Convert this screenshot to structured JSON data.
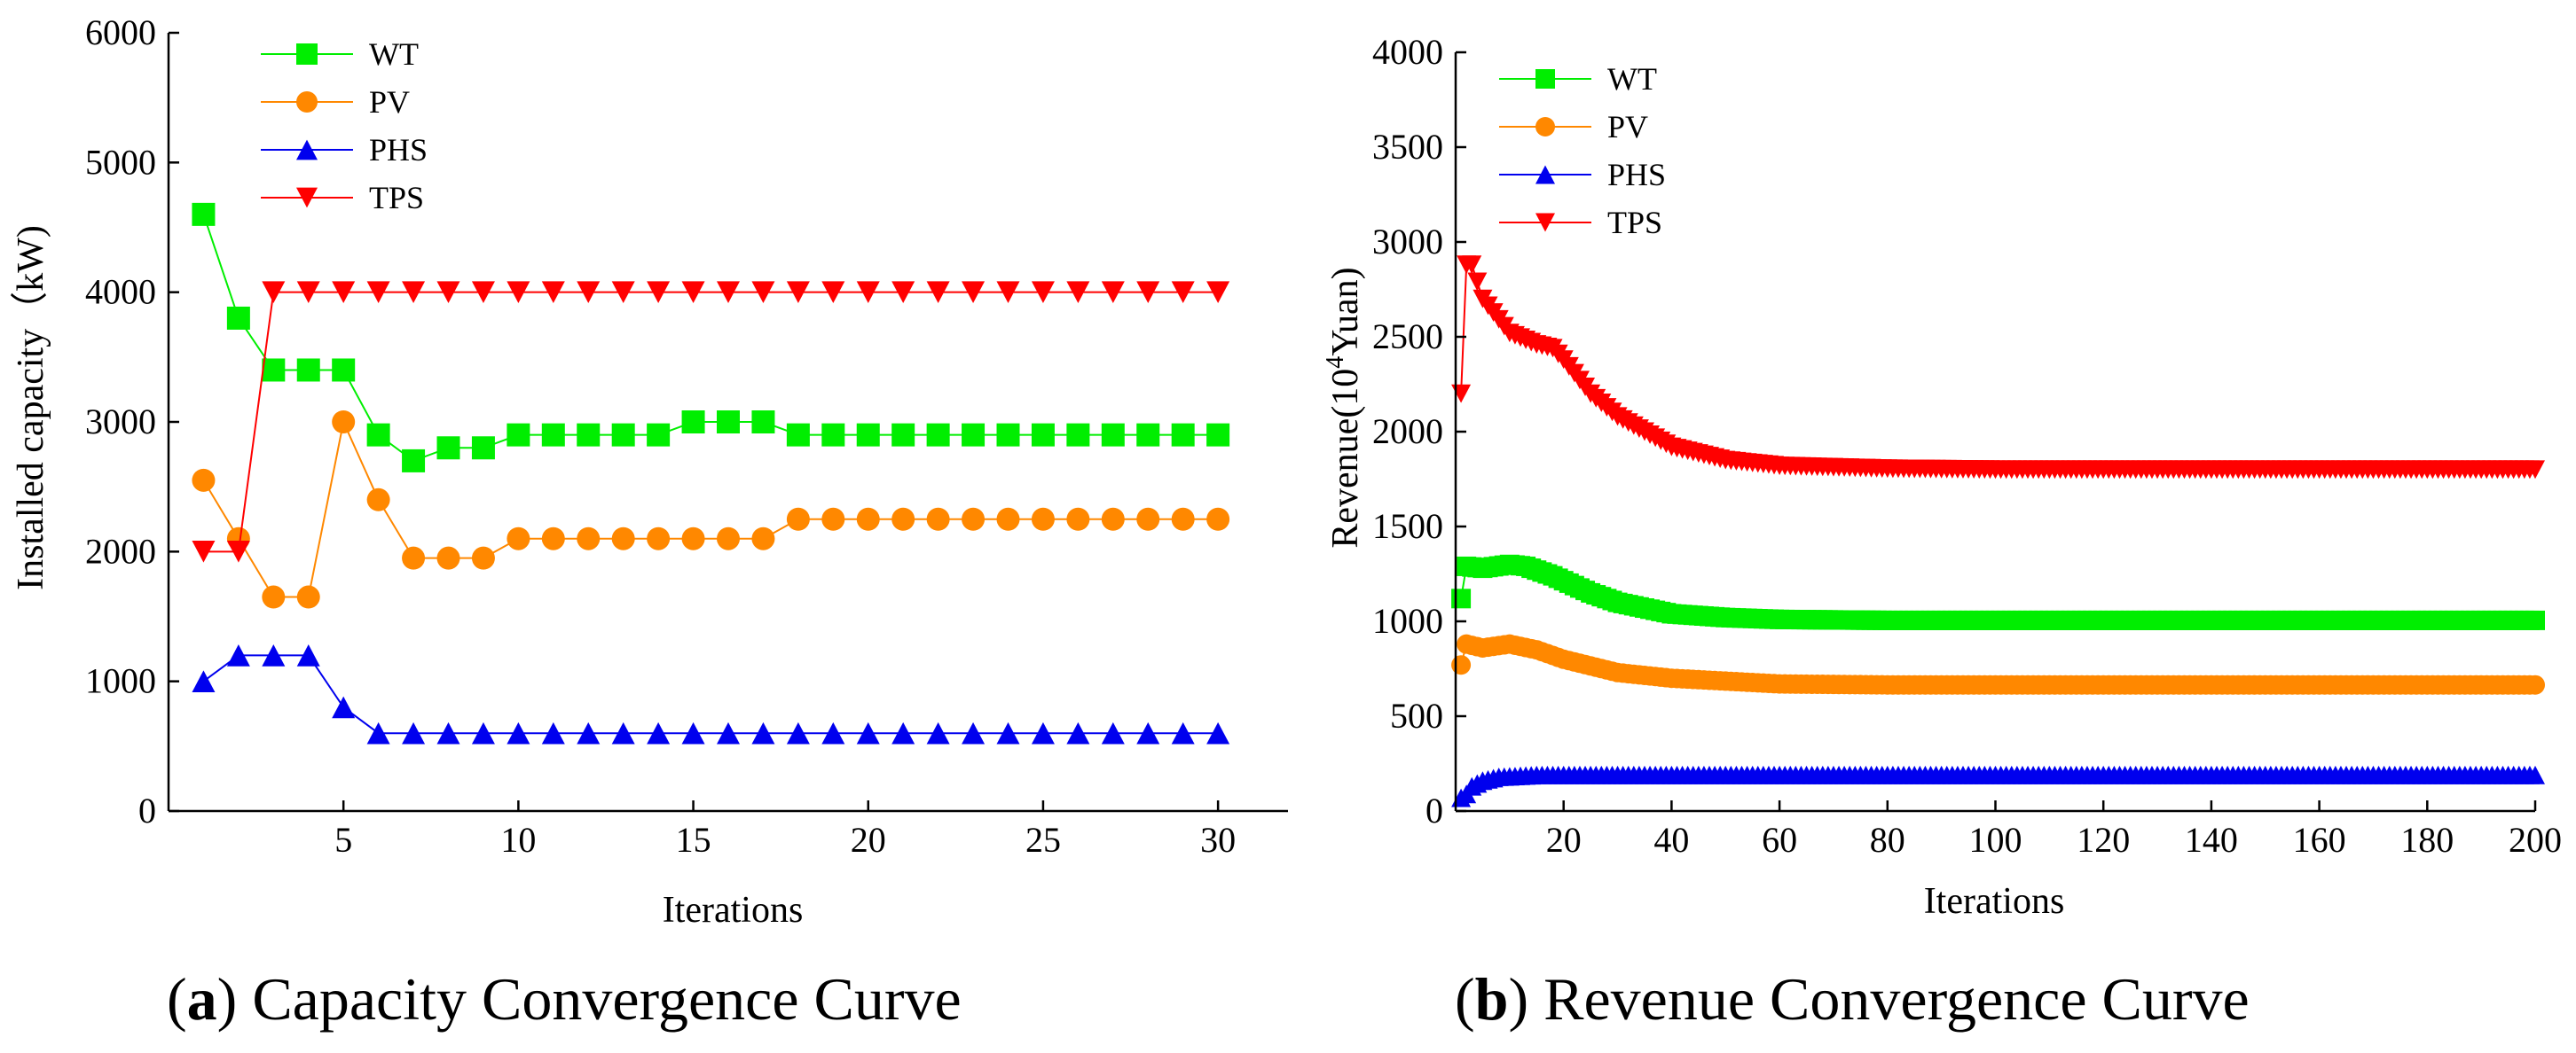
{
  "chart_data": [
    {
      "type": "line",
      "caption_letter": "a",
      "caption_text": "Capacity Convergence Curve",
      "xlabel": "Iterations",
      "ylabel": "Installed capacity（kW)",
      "xlim": [
        0,
        32
      ],
      "ylim": [
        0,
        6000
      ],
      "x_ticks": [
        5,
        10,
        15,
        20,
        25,
        30
      ],
      "y_ticks": [
        0,
        1000,
        2000,
        3000,
        4000,
        5000,
        6000
      ],
      "x": [
        1,
        2,
        3,
        4,
        5,
        6,
        7,
        8,
        9,
        10,
        11,
        12,
        13,
        14,
        15,
        16,
        17,
        18,
        19,
        20,
        21,
        22,
        23,
        24,
        25,
        26,
        27,
        28,
        29,
        30
      ],
      "series": [
        {
          "name": "WT",
          "color": "#00ee00",
          "marker": "square",
          "values": [
            4600,
            3800,
            3400,
            3400,
            3400,
            2900,
            2700,
            2800,
            2800,
            2900,
            2900,
            2900,
            2900,
            2900,
            3000,
            3000,
            3000,
            2900,
            2900,
            2900,
            2900,
            2900,
            2900,
            2900,
            2900,
            2900,
            2900,
            2900,
            2900,
            2900
          ]
        },
        {
          "name": "PV",
          "color": "#ff8800",
          "marker": "circle",
          "values": [
            2550,
            2100,
            1650,
            1650,
            3000,
            2400,
            1950,
            1950,
            1950,
            2100,
            2100,
            2100,
            2100,
            2100,
            2100,
            2100,
            2100,
            2250,
            2250,
            2250,
            2250,
            2250,
            2250,
            2250,
            2250,
            2250,
            2250,
            2250,
            2250,
            2250
          ]
        },
        {
          "name": "PHS",
          "color": "#0000ee",
          "marker": "triangle-up",
          "values": [
            1000,
            1200,
            1200,
            1200,
            800,
            600,
            600,
            600,
            600,
            600,
            600,
            600,
            600,
            600,
            600,
            600,
            600,
            600,
            600,
            600,
            600,
            600,
            600,
            600,
            600,
            600,
            600,
            600,
            600,
            600
          ]
        },
        {
          "name": "TPS",
          "color": "#ff0000",
          "marker": "triangle-down",
          "values": [
            2000,
            2000,
            4000,
            4000,
            4000,
            4000,
            4000,
            4000,
            4000,
            4000,
            4000,
            4000,
            4000,
            4000,
            4000,
            4000,
            4000,
            4000,
            4000,
            4000,
            4000,
            4000,
            4000,
            4000,
            4000,
            4000,
            4000,
            4000,
            4000,
            4000
          ]
        }
      ]
    },
    {
      "type": "line",
      "caption_letter": "b",
      "caption_text": "Revenue Convergence Curve",
      "xlabel": "Iterations",
      "ylabel_prefix": "Revenue(10",
      "ylabel_sup": "4",
      "ylabel_suffix": "Yuan)",
      "xlim": [
        0,
        200
      ],
      "ylim": [
        0,
        4000
      ],
      "x_ticks": [
        20,
        40,
        60,
        80,
        100,
        120,
        140,
        160,
        180,
        200
      ],
      "y_ticks": [
        0,
        500,
        1000,
        1500,
        2000,
        2500,
        3000,
        3500,
        4000
      ],
      "n_points": 200,
      "series": [
        {
          "name": "WT",
          "color": "#00ee00",
          "marker": "square",
          "keypoints": [
            [
              1,
              1120
            ],
            [
              2,
              1290
            ],
            [
              5,
              1280
            ],
            [
              10,
              1300
            ],
            [
              13,
              1290
            ],
            [
              18,
              1240
            ],
            [
              25,
              1150
            ],
            [
              30,
              1100
            ],
            [
              40,
              1040
            ],
            [
              50,
              1020
            ],
            [
              60,
              1010
            ],
            [
              80,
              1005
            ],
            [
              100,
              1005
            ],
            [
              200,
              1005
            ]
          ]
        },
        {
          "name": "PV",
          "color": "#ff8800",
          "marker": "circle",
          "keypoints": [
            [
              1,
              770
            ],
            [
              2,
              880
            ],
            [
              5,
              860
            ],
            [
              10,
              880
            ],
            [
              15,
              850
            ],
            [
              20,
              800
            ],
            [
              30,
              730
            ],
            [
              40,
              700
            ],
            [
              60,
              670
            ],
            [
              80,
              665
            ],
            [
              100,
              665
            ],
            [
              200,
              665
            ]
          ]
        },
        {
          "name": "PHS",
          "color": "#0000ee",
          "marker": "triangle-up",
          "keypoints": [
            [
              1,
              70
            ],
            [
              2,
              90
            ],
            [
              3,
              130
            ],
            [
              5,
              160
            ],
            [
              8,
              180
            ],
            [
              15,
              190
            ],
            [
              200,
              190
            ]
          ]
        },
        {
          "name": "TPS",
          "color": "#ff0000",
          "marker": "triangle-down",
          "keypoints": [
            [
              1,
              2200
            ],
            [
              2,
              2880
            ],
            [
              3,
              2880
            ],
            [
              5,
              2700
            ],
            [
              10,
              2520
            ],
            [
              15,
              2460
            ],
            [
              18,
              2440
            ],
            [
              20,
              2380
            ],
            [
              25,
              2200
            ],
            [
              30,
              2080
            ],
            [
              40,
              1920
            ],
            [
              50,
              1850
            ],
            [
              60,
              1820
            ],
            [
              80,
              1805
            ],
            [
              100,
              1800
            ],
            [
              200,
              1800
            ]
          ]
        }
      ]
    }
  ]
}
